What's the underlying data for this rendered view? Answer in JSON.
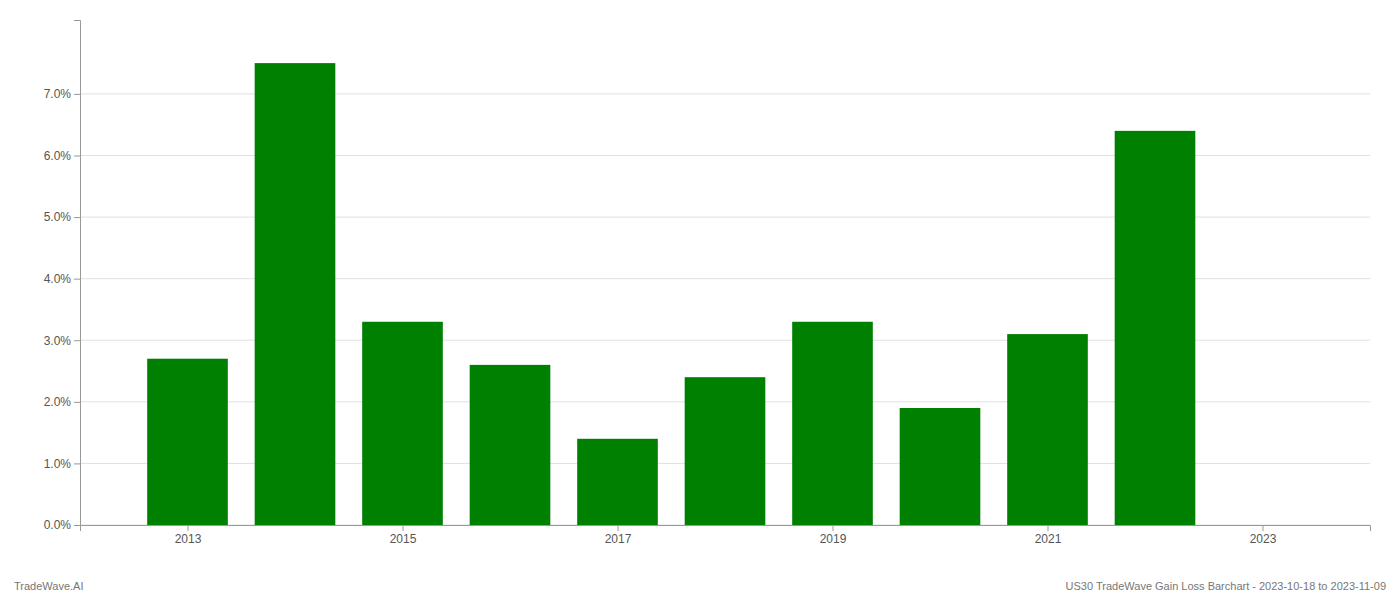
{
  "chart_data": {
    "type": "bar",
    "x": [
      2013,
      2014,
      2015,
      2016,
      2017,
      2018,
      2019,
      2020,
      2021,
      2022
    ],
    "values": [
      0.027,
      0.075,
      0.033,
      0.026,
      0.014,
      0.024,
      0.033,
      0.019,
      0.031,
      0.064
    ],
    "color": "#008000",
    "xlim": [
      2012.0,
      2024.0
    ],
    "xticks": [
      2013,
      2015,
      2017,
      2019,
      2021,
      2023
    ],
    "ylim": [
      0,
      0.082
    ],
    "yticks": [
      {
        "value": 0.0,
        "label": "0.0%"
      },
      {
        "value": 0.01,
        "label": "1.0%"
      },
      {
        "value": 0.02,
        "label": "2.0%"
      },
      {
        "value": 0.03,
        "label": "3.0%"
      },
      {
        "value": 0.04,
        "label": "4.0%"
      },
      {
        "value": 0.05,
        "label": "5.0%"
      },
      {
        "value": 0.06,
        "label": "6.0%"
      },
      {
        "value": 0.07,
        "label": "7.0%"
      }
    ],
    "grid": true,
    "annotations": [
      "TradeWave.AI",
      "US30 TradeWave Gain Loss Barchart - 2023-10-18 to 2023-11-09"
    ]
  }
}
